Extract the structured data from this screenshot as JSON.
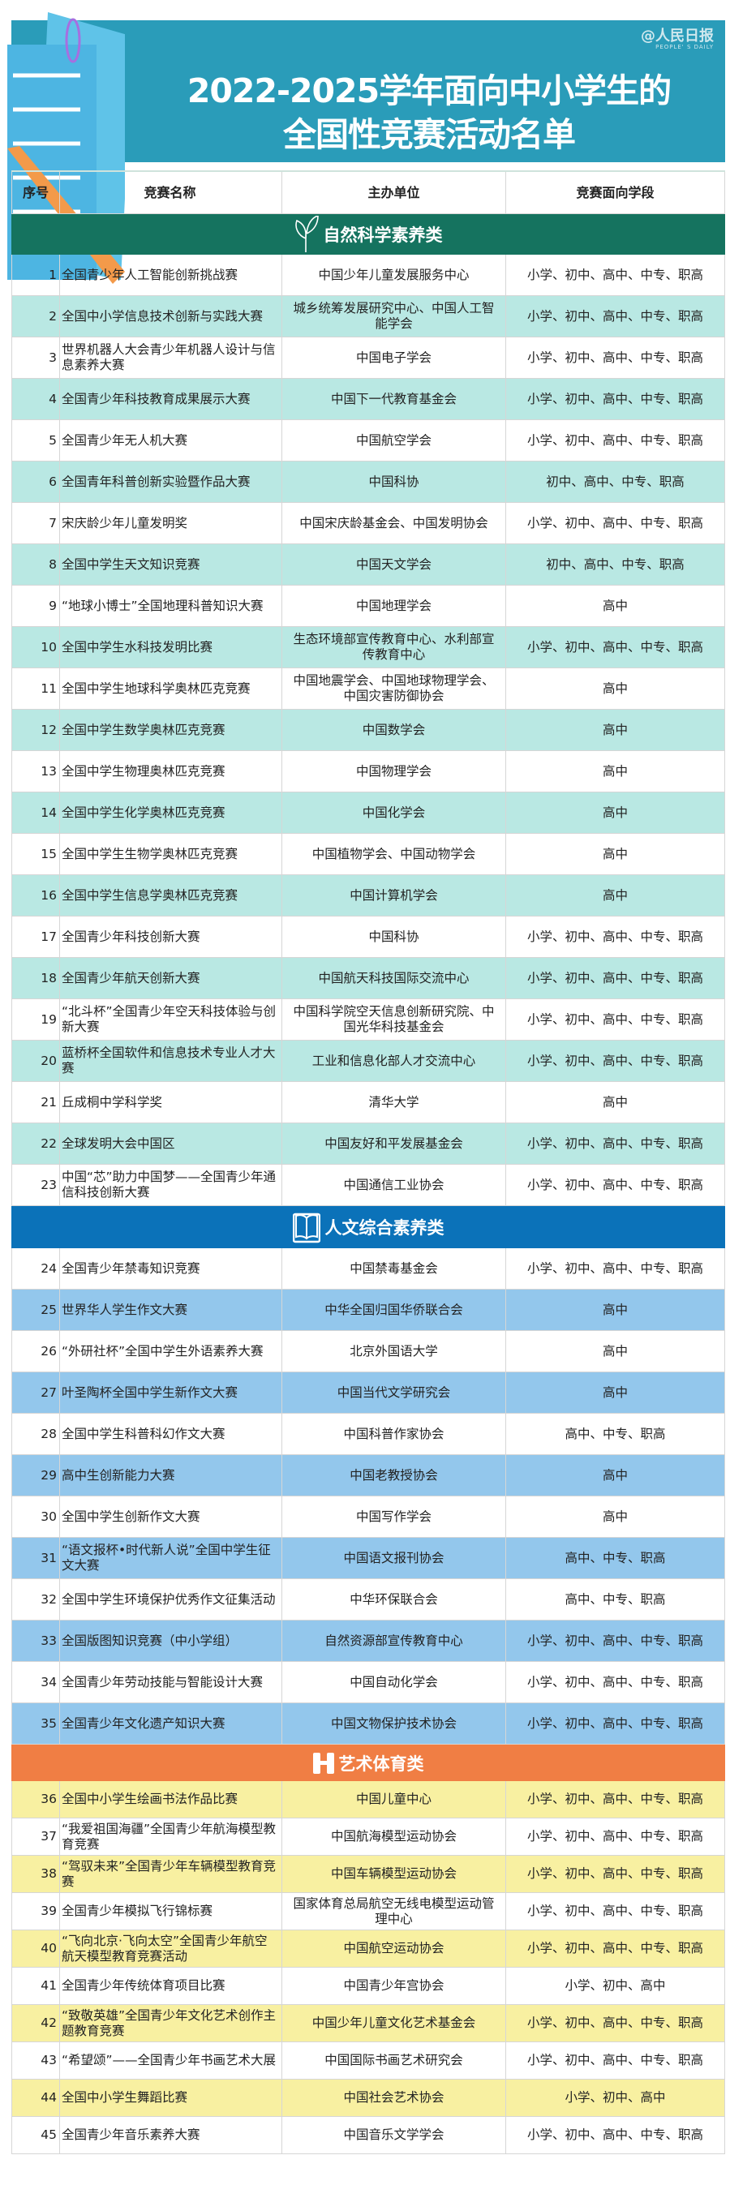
{
  "banner": {
    "title_line1": "2022-2025学年面向中小学生的",
    "title_line2": "全国性竞赛活动名单",
    "logo_text": "人民日报",
    "logo_sub": "PEOPLE' S DAILY",
    "logo_at": "@"
  },
  "colors": {
    "banner": "#2a9cb9",
    "cat_science": "#15735f",
    "cat_humanities": "#0b72b9",
    "cat_arts": "#f07e44",
    "row_science": "#b9e8e3",
    "row_humanities": "#93c7ec",
    "row_arts": "#f8f0a1"
  },
  "table": {
    "headers": [
      "序号",
      "竞赛名称",
      "主办单位",
      "竞赛面向学段"
    ],
    "sections": [
      {
        "title": "自然科学素养类",
        "icon": "leaf-icon",
        "rows": [
          [
            "1",
            "全国青少年人工智能创新挑战赛",
            "中国少年儿童发展服务中心",
            "小学、初中、高中、中专、职高"
          ],
          [
            "2",
            "全国中小学信息技术创新与实践大赛",
            "城乡统筹发展研究中心、中国人工智能学会",
            "小学、初中、高中、中专、职高"
          ],
          [
            "3",
            "世界机器人大会青少年机器人设计与信息素养大赛",
            "中国电子学会",
            "小学、初中、高中、中专、职高"
          ],
          [
            "4",
            "全国青少年科技教育成果展示大赛",
            "中国下一代教育基金会",
            "小学、初中、高中、中专、职高"
          ],
          [
            "5",
            "全国青少年无人机大赛",
            "中国航空学会",
            "小学、初中、高中、中专、职高"
          ],
          [
            "6",
            "全国青年科普创新实验暨作品大赛",
            "中国科协",
            "初中、高中、中专、职高"
          ],
          [
            "7",
            "宋庆龄少年儿童发明奖",
            "中国宋庆龄基金会、中国发明协会",
            "小学、初中、高中、中专、职高"
          ],
          [
            "8",
            "全国中学生天文知识竞赛",
            "中国天文学会",
            "初中、高中、中专、职高"
          ],
          [
            "9",
            "“地球小博士”全国地理科普知识大赛",
            "中国地理学会",
            "高中"
          ],
          [
            "10",
            "全国中学生水科技发明比赛",
            "生态环境部宣传教育中心、水利部宣传教育中心",
            "小学、初中、高中、中专、职高"
          ],
          [
            "11",
            "全国中学生地球科学奥林匹克竞赛",
            "中国地震学会、中国地球物理学会、中国灾害防御协会",
            "高中"
          ],
          [
            "12",
            "全国中学生数学奥林匹克竞赛",
            "中国数学会",
            "高中"
          ],
          [
            "13",
            "全国中学生物理奥林匹克竞赛",
            "中国物理学会",
            "高中"
          ],
          [
            "14",
            "全国中学生化学奥林匹克竞赛",
            "中国化学会",
            "高中"
          ],
          [
            "15",
            "全国中学生生物学奥林匹克竞赛",
            "中国植物学会、中国动物学会",
            "高中"
          ],
          [
            "16",
            "全国中学生信息学奥林匹克竞赛",
            "中国计算机学会",
            "高中"
          ],
          [
            "17",
            "全国青少年科技创新大赛",
            "中国科协",
            "小学、初中、高中、中专、职高"
          ],
          [
            "18",
            "全国青少年航天创新大赛",
            "中国航天科技国际交流中心",
            "小学、初中、高中、中专、职高"
          ],
          [
            "19",
            "“北斗杯”全国青少年空天科技体验与创新大赛",
            "中国科学院空天信息创新研究院、中国光华科技基金会",
            "小学、初中、高中、中专、职高"
          ],
          [
            "20",
            "蓝桥杯全国软件和信息技术专业人才大赛",
            "工业和信息化部人才交流中心",
            "小学、初中、高中、中专、职高"
          ],
          [
            "21",
            "丘成桐中学科学奖",
            "清华大学",
            "高中"
          ],
          [
            "22",
            "全球发明大会中国区",
            "中国友好和平发展基金会",
            "小学、初中、高中、中专、职高"
          ],
          [
            "23",
            "中国“芯”助力中国梦——全国青少年通信科技创新大赛",
            "中国通信工业协会",
            "小学、初中、高中、中专、职高"
          ]
        ]
      },
      {
        "title": "人文综合素养类",
        "icon": "book-icon",
        "rows": [
          [
            "24",
            "全国青少年禁毒知识竞赛",
            "中国禁毒基金会",
            "小学、初中、高中、中专、职高"
          ],
          [
            "25",
            "世界华人学生作文大赛",
            "中华全国归国华侨联合会",
            "高中"
          ],
          [
            "26",
            "“外研社杯”全国中学生外语素养大赛",
            "北京外国语大学",
            "高中"
          ],
          [
            "27",
            "叶圣陶杯全国中学生新作文大赛",
            "中国当代文学研究会",
            "高中"
          ],
          [
            "28",
            "全国中学生科普科幻作文大赛",
            "中国科普作家协会",
            "高中、中专、职高"
          ],
          [
            "29",
            "高中生创新能力大赛",
            "中国老教授协会",
            "高中"
          ],
          [
            "30",
            "全国中学生创新作文大赛",
            "中国写作学会",
            "高中"
          ],
          [
            "31",
            "“语文报杯•时代新人说”全国中学生征文大赛",
            "中国语文报刊协会",
            "高中、中专、职高"
          ],
          [
            "32",
            "全国中学生环境保护优秀作文征集活动",
            "中华环保联合会",
            "高中、中专、职高"
          ],
          [
            "33",
            "全国版图知识竞赛（中小学组）",
            "自然资源部宣传教育中心",
            "小学、初中、高中、中专、职高"
          ],
          [
            "34",
            "全国青少年劳动技能与智能设计大赛",
            "中国自动化学会",
            "小学、初中、高中、中专、职高"
          ],
          [
            "35",
            "全国青少年文化遗产知识大赛",
            "中国文物保护技术协会",
            "小学、初中、高中、中专、职高"
          ]
        ]
      },
      {
        "title": "艺术体育类",
        "icon": "dumbbell-icon",
        "rows": [
          [
            "36",
            "全国中小学生绘画书法作品比赛",
            "中国儿童中心",
            "小学、初中、高中、中专、职高"
          ],
          [
            "37",
            "“我爱祖国海疆”全国青少年航海模型教育竞赛",
            "中国航海模型运动协会",
            "小学、初中、高中、中专、职高"
          ],
          [
            "38",
            "“驾驭未来”全国青少年车辆模型教育竞赛",
            "中国车辆模型运动协会",
            "小学、初中、高中、中专、职高"
          ],
          [
            "39",
            "全国青少年模拟飞行锦标赛",
            "国家体育总局航空无线电模型运动管理中心",
            "小学、初中、高中、中专、职高"
          ],
          [
            "40",
            "“飞向北京·飞向太空”全国青少年航空航天模型教育竞赛活动",
            "中国航空运动协会",
            "小学、初中、高中、中专、职高"
          ],
          [
            "41",
            "全国青少年传统体育项目比赛",
            "中国青少年宫协会",
            "小学、初中、高中"
          ],
          [
            "42",
            "“致敬英雄”全国青少年文化艺术创作主题教育竞赛",
            "中国少年儿童文化艺术基金会",
            "小学、初中、高中、中专、职高"
          ],
          [
            "43",
            "“希望颂”——全国青少年书画艺术大展",
            "中国国际书画艺术研究会",
            "小学、初中、高中、中专、职高"
          ],
          [
            "44",
            "全国中小学生舞蹈比赛",
            "中国社会艺术协会",
            "小学、初中、高中"
          ],
          [
            "45",
            "全国青少年音乐素养大赛",
            "中国音乐文学学会",
            "小学、初中、高中、中专、职高"
          ]
        ]
      }
    ]
  }
}
